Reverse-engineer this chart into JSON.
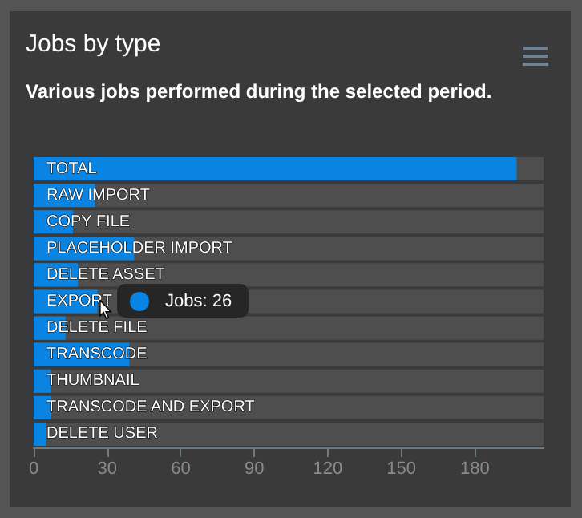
{
  "chart_data": {
    "type": "bar",
    "orientation": "horizontal",
    "title": "Jobs by type",
    "subtitle": "Various jobs performed during the selected period.",
    "categories": [
      "TOTAL",
      "RAW IMPORT",
      "COPY FILE",
      "PLACEHOLDER IMPORT",
      "DELETE ASSET",
      "EXPORT",
      "DELETE FILE",
      "TRANSCODE",
      "THUMBNAIL",
      "TRANSCODE AND EXPORT",
      "DELETE USER"
    ],
    "values": [
      197,
      25,
      16,
      41,
      18,
      26,
      13,
      39,
      7,
      7,
      5
    ],
    "color": "#0a84e3",
    "xlim": [
      0,
      208
    ],
    "xticks": [
      0,
      30,
      60,
      90,
      120,
      150,
      180
    ],
    "grid": false,
    "annotations": [
      "Jobs: 26"
    ]
  }
}
